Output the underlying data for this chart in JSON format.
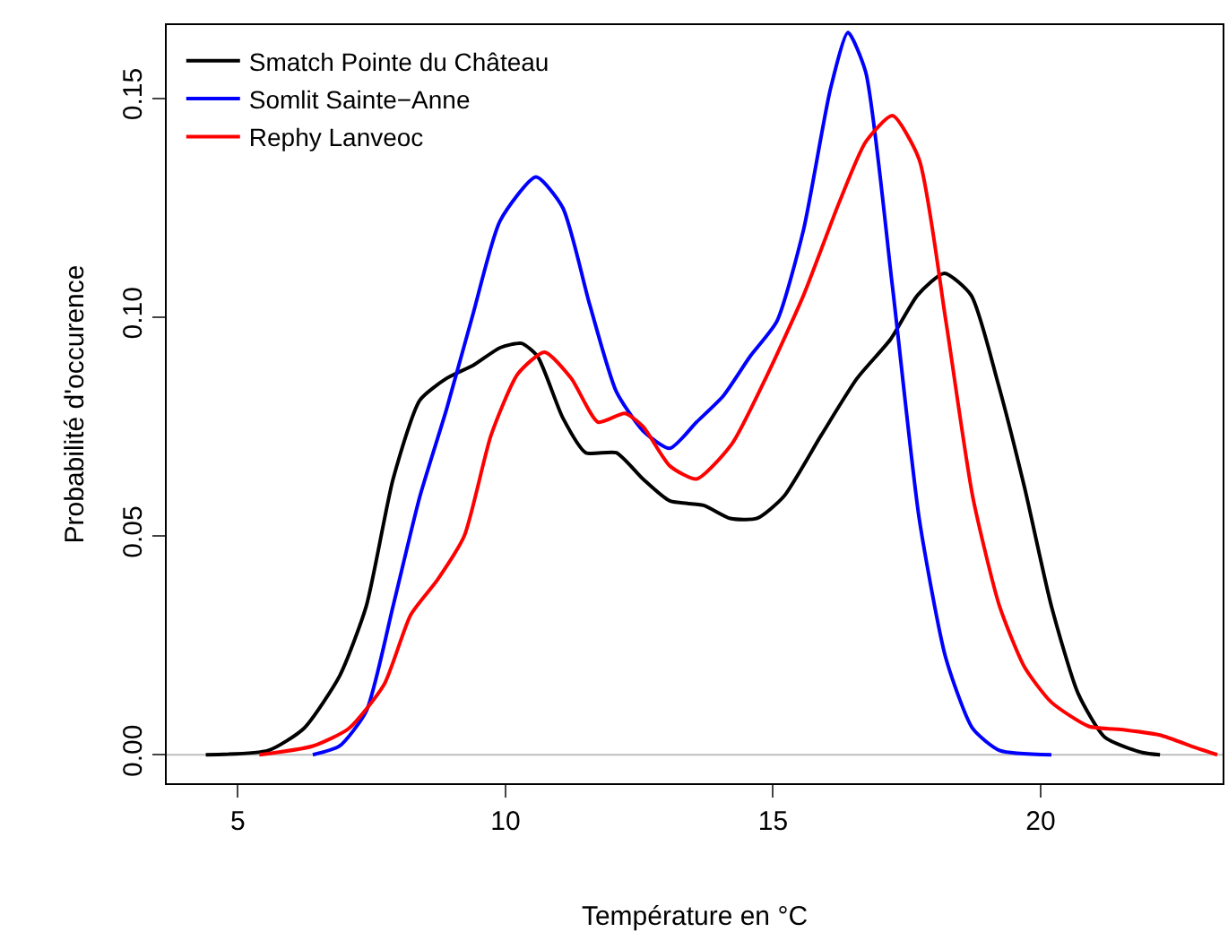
{
  "chart_data": {
    "type": "line",
    "xlabel": "Température en °C",
    "ylabel": "Probabilité d'occurence",
    "xlim": [
      3.67,
      23.4
    ],
    "ylim": [
      -0.0065,
      0.1667
    ],
    "xticks": [
      5,
      10,
      15,
      20
    ],
    "yticks": [
      {
        "value": 0,
        "label": "0.00"
      },
      {
        "value": 0.05,
        "label": "0.05"
      },
      {
        "value": 0.1,
        "label": "0.10"
      },
      {
        "value": 0.15,
        "label": "0.15"
      }
    ],
    "grid": false,
    "legend": "top left",
    "marker": "none",
    "line_style": "solid",
    "ref_lines": [
      {
        "axis": "y",
        "value": 0,
        "label": null,
        "color": "#bebebe"
      }
    ],
    "series": [
      {
        "name": "Smatch Pointe du Château",
        "color": "#000000",
        "x": [
          4.4,
          5.57,
          6.23,
          6.9,
          7.4,
          7.9,
          8.4,
          8.9,
          9.4,
          9.9,
          10.3,
          10.6,
          11.07,
          11.5,
          12.07,
          12.57,
          13.07,
          13.7,
          14.2,
          14.7,
          15.2,
          15.9,
          16.57,
          17.2,
          17.7,
          18.2,
          18.7,
          19.2,
          19.7,
          20.2,
          20.7,
          21.2,
          21.9,
          22.23
        ],
        "values": [
          0,
          0.001,
          0.006,
          0.018,
          0.034,
          0.063,
          0.081,
          0.086,
          0.089,
          0.093,
          0.094,
          0.091,
          0.077,
          0.069,
          0.069,
          0.063,
          0.058,
          0.057,
          0.054,
          0.054,
          0.059,
          0.073,
          0.086,
          0.095,
          0.105,
          0.11,
          0.105,
          0.085,
          0.061,
          0.034,
          0.014,
          0.004,
          0.0005,
          0
        ]
      },
      {
        "name": "Somlit Sainte−Anne",
        "color": "#0000ff",
        "x": [
          6.4,
          6.9,
          7.4,
          7.9,
          8.4,
          8.9,
          9.4,
          9.9,
          10.57,
          11.07,
          11.57,
          12.07,
          12.57,
          13.07,
          13.57,
          14.07,
          14.57,
          15.07,
          15.57,
          16.07,
          16.4,
          16.73,
          17.23,
          17.73,
          18.23,
          18.73,
          19.23,
          20.2
        ],
        "values": [
          0,
          0.002,
          0.01,
          0.034,
          0.059,
          0.079,
          0.101,
          0.122,
          0.132,
          0.125,
          0.103,
          0.083,
          0.074,
          0.07,
          0.076,
          0.082,
          0.091,
          0.099,
          0.12,
          0.152,
          0.165,
          0.156,
          0.107,
          0.054,
          0.022,
          0.006,
          0.001,
          0
        ]
      },
      {
        "name": "Rephy Lanveoc",
        "color": "#ff0000",
        "x": [
          5.4,
          6.4,
          7.07,
          7.73,
          8.23,
          8.73,
          9.23,
          9.73,
          10.23,
          10.73,
          11.23,
          11.73,
          12.23,
          12.57,
          13.07,
          13.57,
          14.23,
          14.9,
          15.57,
          16.23,
          16.73,
          17.23,
          17.73,
          18.23,
          18.73,
          19.23,
          19.7,
          20.2,
          20.9,
          21.57,
          22.23,
          22.9,
          23.3
        ],
        "values": [
          0,
          0.002,
          0.006,
          0.016,
          0.032,
          0.04,
          0.05,
          0.073,
          0.087,
          0.092,
          0.086,
          0.076,
          0.078,
          0.075,
          0.066,
          0.063,
          0.071,
          0.087,
          0.105,
          0.126,
          0.14,
          0.146,
          0.136,
          0.099,
          0.059,
          0.034,
          0.02,
          0.012,
          0.0065,
          0.0057,
          0.0045,
          0.0016,
          0
        ]
      }
    ]
  }
}
